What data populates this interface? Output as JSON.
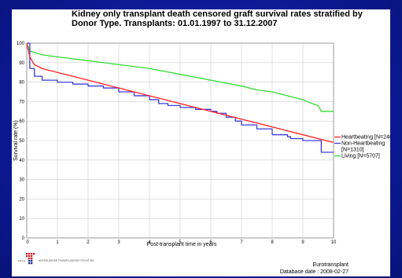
{
  "chart_data": {
    "type": "line",
    "title": "Kidney only transplant death censored graft survival rates stratified by",
    "title_line2": "Donor Type. Transplants: 01.01.1997 to 31.12.2007",
    "xlabel": "Post-transplant time in years",
    "ylabel": "Survival rate (%)",
    "xlim": [
      0,
      10
    ],
    "ylim": [
      0,
      100
    ],
    "x_ticks": [
      0,
      1,
      2,
      3,
      4,
      5,
      6,
      7,
      8,
      9,
      10
    ],
    "y_ticks": [
      0,
      10,
      20,
      30,
      40,
      50,
      60,
      70,
      80,
      90,
      100
    ],
    "grid": true,
    "legend_position": "right",
    "series": [
      {
        "name": "Heartbeating [N=24026]",
        "color": "#ff2020",
        "step": false,
        "x": [
          0,
          0.1,
          0.25,
          0.5,
          1,
          1.5,
          2,
          2.5,
          3,
          3.5,
          4,
          4.5,
          5,
          5.5,
          6,
          6.5,
          7,
          7.5,
          8,
          8.5,
          9,
          9.5,
          10
        ],
        "y": [
          100,
          93,
          89,
          87,
          85,
          83,
          81,
          79,
          77,
          75,
          73,
          71,
          69,
          67,
          65,
          63,
          61,
          59,
          57,
          55,
          53,
          51,
          49
        ]
      },
      {
        "name": "Non-Heartbeating [N=1310]",
        "color": "#3a3adc",
        "step": true,
        "x": [
          0,
          0.1,
          0.25,
          0.5,
          1,
          1.5,
          2,
          2.5,
          3,
          3.5,
          4,
          4.3,
          4.6,
          5,
          5.5,
          6,
          6.2,
          6.5,
          6.8,
          7,
          7.5,
          8,
          8.5,
          8.6,
          9,
          9.6,
          10
        ],
        "y": [
          100,
          87,
          83,
          81,
          80,
          79,
          78,
          77,
          75,
          73,
          71,
          69,
          68,
          67,
          66,
          65,
          64,
          62,
          60,
          58,
          56,
          53,
          52,
          51,
          50,
          44,
          44
        ]
      },
      {
        "name": "Living [N=5707]",
        "color": "#33dd33",
        "step": false,
        "x": [
          0,
          0.1,
          0.3,
          0.5,
          1,
          2,
          3,
          4,
          5,
          6,
          7,
          7.5,
          8,
          8.5,
          9,
          9.3,
          9.5,
          9.6,
          10
        ],
        "y": [
          100,
          96,
          95,
          94,
          93,
          91,
          89,
          87,
          84,
          81,
          78,
          76,
          75,
          73,
          71,
          69,
          68,
          65,
          65
        ]
      }
    ],
    "legend_lines": [
      {
        "text": "Heartbeating [N=24026]",
        "color": "#ff2020"
      },
      {
        "text": "Non-Heartbeating",
        "color": "#3a3adc"
      },
      {
        "text": "[N=1310]",
        "color": ""
      },
      {
        "text": "Living [N=5707]",
        "color": "#33dd33"
      }
    ]
  },
  "footer": {
    "org_name": "Eurotransplant",
    "database_date": "Database date : 2008-02-27",
    "logo_text": "NEDERLANDSE TRANSPLANTATIE STICHTING"
  },
  "colors": {
    "background": "#0c1a96",
    "panel": "#ffffff",
    "grid": "#cfcfcf"
  }
}
